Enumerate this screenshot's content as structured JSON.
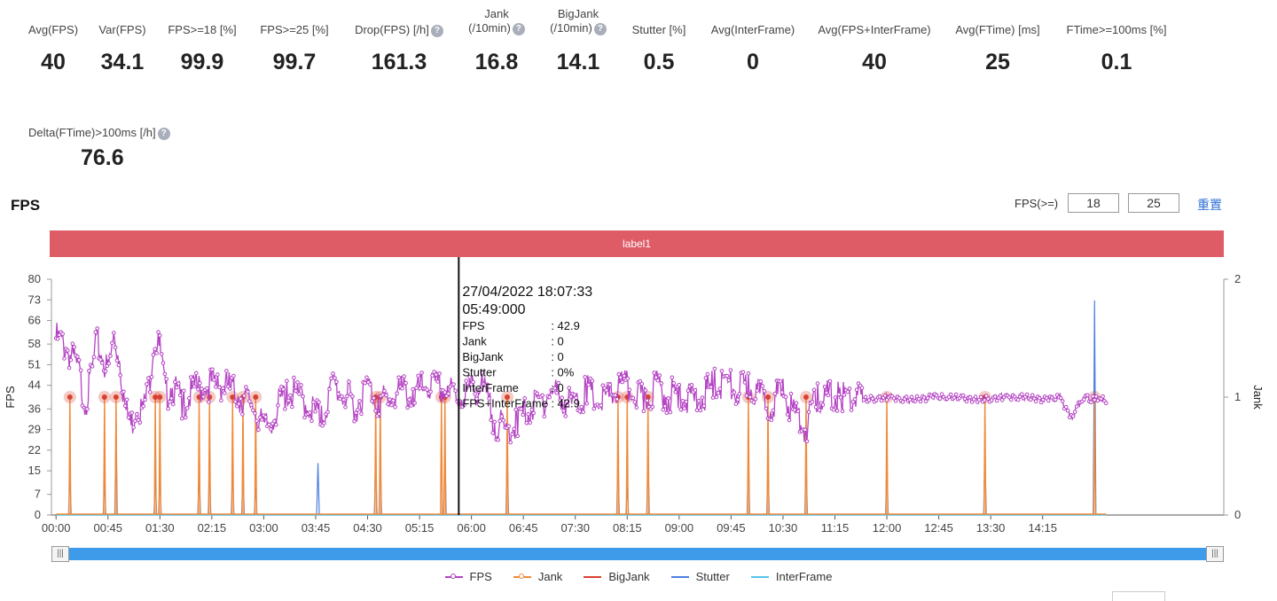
{
  "metrics": [
    {
      "label": "Avg(FPS)",
      "value": "40",
      "help": false
    },
    {
      "label": "Var(FPS)",
      "value": "34.1",
      "help": false
    },
    {
      "label": "FPS>=18 [%]",
      "value": "99.9",
      "help": false
    },
    {
      "label": "FPS>=25 [%]",
      "value": "99.7",
      "help": false
    },
    {
      "label": "Drop(FPS) [/h]",
      "value": "161.3",
      "help": true
    },
    {
      "label": "Jank",
      "label2": "(/10min)",
      "value": "16.8",
      "help": true
    },
    {
      "label": "BigJank",
      "label2": "(/10min)",
      "value": "14.1",
      "help": true
    },
    {
      "label": "Stutter [%]",
      "value": "0.5",
      "help": false
    },
    {
      "label": "Avg(InterFrame)",
      "value": "0",
      "help": false
    },
    {
      "label": "Avg(FPS+InterFrame)",
      "value": "40",
      "help": false
    },
    {
      "label": "Avg(FTime) [ms]",
      "value": "25",
      "help": false
    },
    {
      "label": "FTime>=100ms [%]",
      "value": "0.1",
      "help": false
    },
    {
      "label": "Delta(FTime)>100ms [/h]",
      "value": "76.6",
      "help": true
    }
  ],
  "help_icon_glyph": "?",
  "section_title": "FPS",
  "fps_filter": {
    "label": "FPS(>=)",
    "value1": "18",
    "value2": "25",
    "reset": "重置"
  },
  "label_bar": "label1",
  "colors": {
    "fps": "#b443c4",
    "jank": "#f08a3a",
    "bigjank": "#d9412e",
    "stutter": "#4b7fe0",
    "interframe": "#56c4ea",
    "label_bar": "#dd5c66",
    "slider": "#3d9be9"
  },
  "tooltip": {
    "datetime": "27/04/2022 18:07:33",
    "elapsed": "05:49:000",
    "rows": [
      {
        "key": "FPS",
        "value": ": 42.9"
      },
      {
        "key": "Jank",
        "value": ": 0"
      },
      {
        "key": "BigJank",
        "value": ": 0"
      },
      {
        "key": "Stutter",
        "value": ": 0%"
      },
      {
        "key": "InterFrame",
        "value": ": 0"
      },
      {
        "key": "FPS+InterFrame",
        "value": ": 42.9"
      }
    ]
  },
  "chart_data": {
    "type": "line",
    "title": "",
    "x_unit": "minutes",
    "xlim": [
      -4,
      1012
    ],
    "ylabel": "FPS",
    "y2label": "Jank",
    "ylim": [
      0,
      80
    ],
    "y2lim": [
      0,
      2
    ],
    "y_ticks": [
      0,
      7,
      15,
      22,
      29,
      36,
      44,
      51,
      58,
      66,
      73,
      80
    ],
    "y2_ticks": [
      0,
      1,
      2
    ],
    "x_ticks": [
      {
        "value": 0,
        "label": "00:00"
      },
      {
        "value": 45,
        "label": "00:45"
      },
      {
        "value": 90,
        "label": "01:30"
      },
      {
        "value": 135,
        "label": "02:15"
      },
      {
        "value": 180,
        "label": "03:00"
      },
      {
        "value": 225,
        "label": "03:45"
      },
      {
        "value": 270,
        "label": "04:30"
      },
      {
        "value": 315,
        "label": "05:15"
      },
      {
        "value": 360,
        "label": "06:00"
      },
      {
        "value": 405,
        "label": "06:45"
      },
      {
        "value": 450,
        "label": "07:30"
      },
      {
        "value": 495,
        "label": "08:15"
      },
      {
        "value": 540,
        "label": "09:00"
      },
      {
        "value": 585,
        "label": "09:45"
      },
      {
        "value": 630,
        "label": "10:30"
      },
      {
        "value": 675,
        "label": "11:15"
      },
      {
        "value": 720,
        "label": "12:00"
      },
      {
        "value": 765,
        "label": "12:45"
      },
      {
        "value": 810,
        "label": "13:30"
      },
      {
        "value": 855,
        "label": "14:15"
      }
    ],
    "fps_series": {
      "name": "FPS",
      "x": [
        0,
        5,
        10,
        15,
        20,
        25,
        30,
        35,
        40,
        45,
        50,
        55,
        60,
        65,
        70,
        75,
        80,
        85,
        90,
        95,
        100,
        110,
        120,
        130,
        140,
        150,
        160,
        170,
        180,
        190,
        200,
        210,
        220,
        230,
        240,
        250,
        260,
        270,
        280,
        290,
        300,
        310,
        320,
        330,
        340,
        350,
        360,
        370,
        380,
        390,
        400,
        410,
        420,
        430,
        440,
        450,
        460,
        470,
        480,
        490,
        500,
        510,
        520,
        530,
        540,
        550,
        560,
        570,
        580,
        590,
        600,
        610,
        620,
        630,
        640,
        650,
        660,
        680,
        700,
        720,
        740,
        760,
        780,
        800,
        820,
        840,
        860,
        870,
        880,
        890,
        900,
        905,
        910
      ],
      "y": [
        60,
        58,
        56,
        52,
        48,
        38,
        45,
        58,
        54,
        48,
        60,
        53,
        36,
        30,
        38,
        35,
        42,
        60,
        56,
        40,
        44,
        38,
        42,
        44,
        45,
        43,
        40,
        38,
        28,
        35,
        42,
        40,
        37,
        32,
        44,
        41,
        37,
        44,
        38,
        40,
        42,
        40,
        44,
        43,
        42,
        40,
        42,
        43,
        32,
        28,
        32,
        36,
        38,
        42,
        40,
        36,
        42,
        38,
        40,
        44,
        42,
        38,
        44,
        40,
        42,
        38,
        40,
        44,
        45,
        42,
        44,
        40,
        38,
        42,
        34,
        30,
        40,
        40,
        39,
        40,
        39,
        40,
        40,
        39,
        40,
        40,
        39,
        40,
        33,
        40,
        39,
        40,
        38
      ]
    },
    "jank_series": {
      "name": "Jank",
      "x": [
        12,
        42,
        52,
        86,
        90,
        124,
        133,
        153,
        162,
        173,
        334,
        277,
        281,
        337,
        391,
        487,
        495,
        513,
        600,
        617,
        650,
        720,
        805,
        900
      ],
      "y": [
        1,
        1,
        1,
        1,
        1,
        1,
        1,
        1,
        1,
        1,
        1,
        1,
        1,
        1,
        1,
        1,
        1,
        1,
        1,
        1,
        1,
        1,
        1,
        1
      ]
    },
    "bigjank_series": {
      "name": "BigJank",
      "x": [
        0,
        910
      ],
      "y": [
        0,
        0
      ]
    },
    "stutter_series": {
      "name": "Stutter",
      "x": [
        12,
        42,
        52,
        86,
        90,
        124,
        133,
        153,
        162,
        173,
        227,
        277,
        281,
        337,
        391,
        487,
        495,
        513,
        600,
        617,
        650,
        720,
        805,
        900
      ],
      "y": [
        0.35,
        0.28,
        0.7,
        0.32,
        0.32,
        0.4,
        0.4,
        0.42,
        0.4,
        0.24,
        0.44,
        0.52,
        0.48,
        0.56,
        0.56,
        0.5,
        0.24,
        0.52,
        0.5,
        0.44,
        0.5,
        0.44,
        0.52,
        1.82
      ]
    },
    "interframe_series": {
      "name": "InterFrame",
      "x": [
        0,
        910
      ],
      "y": [
        0,
        0
      ]
    },
    "tooltip_x": 349,
    "legend": [
      "FPS",
      "Jank",
      "BigJank",
      "Stutter",
      "InterFrame"
    ],
    "legend_position": "bottom"
  },
  "slider": {
    "handle_glyph": "|||",
    "range": [
      0,
      1
    ]
  }
}
